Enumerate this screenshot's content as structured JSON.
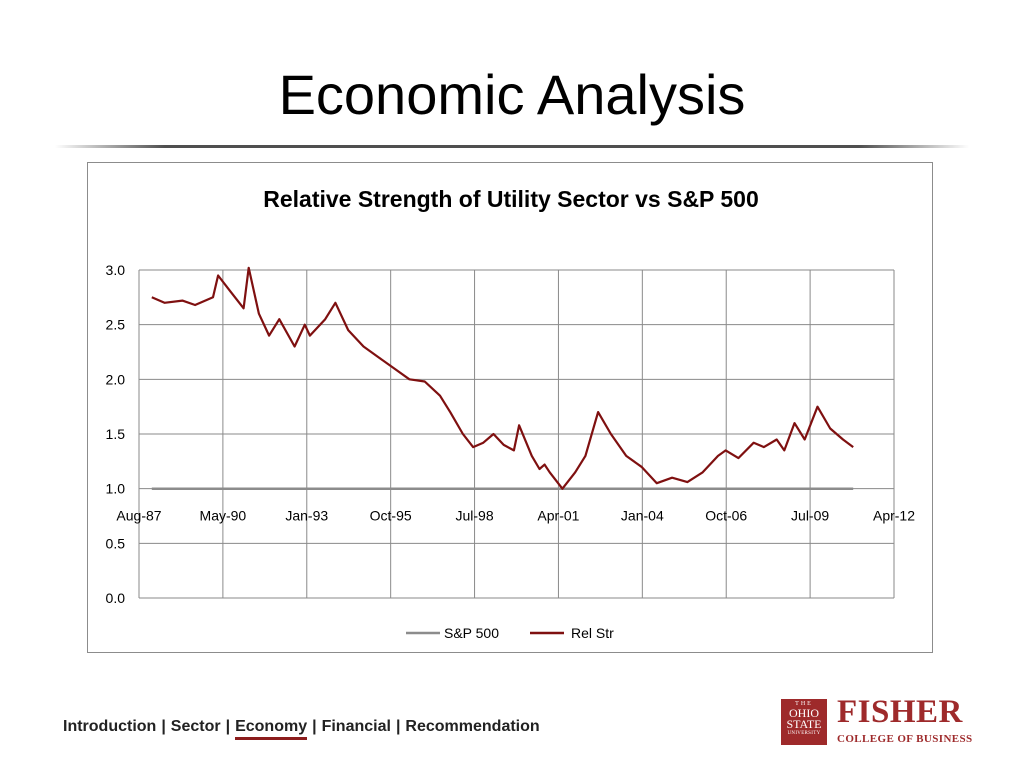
{
  "slide": {
    "title": "Economic Analysis"
  },
  "nav": {
    "items": [
      {
        "label": "Introduction",
        "active": false
      },
      {
        "label": "Sector",
        "active": false
      },
      {
        "label": "Economy",
        "active": true
      },
      {
        "label": "Financial",
        "active": false
      },
      {
        "label": "Recommendation",
        "active": false
      }
    ],
    "separator": "|"
  },
  "logo": {
    "seal_lines": [
      "THE",
      "OHIO",
      "STATE",
      "UNIVERSITY"
    ],
    "name": "FISHER",
    "subtitle": "COLLEGE OF BUSINESS",
    "color": "#9e2a2b"
  },
  "chart_data": {
    "type": "line",
    "title": "Relative Strength of Utility Sector vs S&P 500",
    "xlabel": "",
    "ylabel": "",
    "x_ticks": [
      "Aug-87",
      "May-90",
      "Jan-93",
      "Oct-95",
      "Jul-98",
      "Apr-01",
      "Jan-04",
      "Oct-06",
      "Jul-09",
      "Apr-12"
    ],
    "x_range": [
      "1987-08",
      "2012-04"
    ],
    "ylim": [
      0,
      3.0
    ],
    "y_ticks": [
      "0.0",
      "0.5",
      "1.0",
      "1.5",
      "2.0",
      "2.5",
      "3.0"
    ],
    "x_axis_crosses_at": 1.0,
    "grid": true,
    "legend_position": "bottom",
    "series": [
      {
        "name": "S&P 500",
        "color": "#8c8c8c",
        "x": [
          "1988-01",
          "2010-12"
        ],
        "values": [
          1.0,
          1.0
        ]
      },
      {
        "name": "Rel Str",
        "color": "#7f1010",
        "x": [
          "1988-01",
          "1988-06",
          "1989-01",
          "1989-06",
          "1990-01",
          "1990-03",
          "1990-08",
          "1991-01",
          "1991-03",
          "1991-07",
          "1991-11",
          "1992-03",
          "1992-09",
          "1993-01",
          "1993-03",
          "1993-09",
          "1994-01",
          "1994-06",
          "1994-12",
          "1995-06",
          "1995-12",
          "1996-06",
          "1996-12",
          "1997-06",
          "1997-10",
          "1998-03",
          "1998-07",
          "1998-11",
          "1999-03",
          "1999-07",
          "1999-11",
          "2000-01",
          "2000-06",
          "2000-09",
          "2000-11",
          "2001-01",
          "2001-06",
          "2001-11",
          "2002-03",
          "2002-08",
          "2003-01",
          "2003-07",
          "2004-01",
          "2004-07",
          "2005-01",
          "2005-07",
          "2006-01",
          "2006-07",
          "2006-10",
          "2007-03",
          "2007-09",
          "2008-01",
          "2008-06",
          "2008-09",
          "2009-01",
          "2009-05",
          "2009-10",
          "2010-03",
          "2010-08",
          "2010-12"
        ],
        "values": [
          2.75,
          2.7,
          2.72,
          2.68,
          2.75,
          2.95,
          2.8,
          2.65,
          3.02,
          2.6,
          2.4,
          2.55,
          2.3,
          2.5,
          2.4,
          2.55,
          2.7,
          2.45,
          2.3,
          2.2,
          2.1,
          2.0,
          1.98,
          1.85,
          1.7,
          1.5,
          1.38,
          1.42,
          1.5,
          1.4,
          1.35,
          1.58,
          1.3,
          1.18,
          1.22,
          1.15,
          1.0,
          1.15,
          1.3,
          1.7,
          1.5,
          1.3,
          1.2,
          1.05,
          1.1,
          1.06,
          1.15,
          1.3,
          1.35,
          1.28,
          1.42,
          1.38,
          1.45,
          1.35,
          1.6,
          1.45,
          1.75,
          1.55,
          1.45,
          1.38
        ]
      }
    ]
  }
}
